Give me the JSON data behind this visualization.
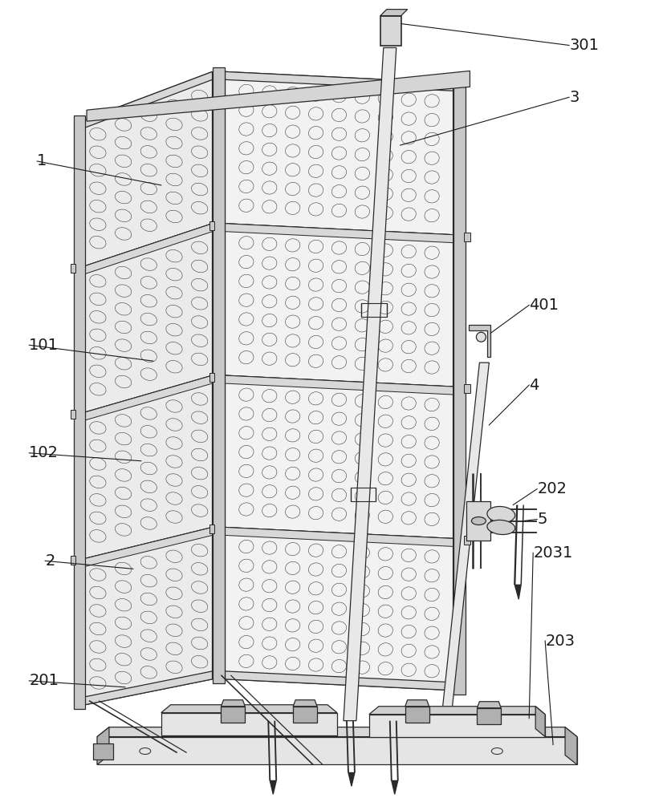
{
  "figure_width": 8.37,
  "figure_height": 10.0,
  "dpi": 100,
  "bg_color": "#ffffff",
  "lc": "#2a2a2a",
  "lw": 0.9,
  "oval_color": "#3a3a3a",
  "oval_lw": 0.4,
  "fill_panel": "#f2f2f2",
  "fill_rail": "#d8d8d8",
  "fill_frame": "#c8c8c8",
  "fill_base": "#e5e5e5",
  "fill_dark": "#b0b0b0",
  "label_fs": 14,
  "label_color": "#1a1a1a"
}
